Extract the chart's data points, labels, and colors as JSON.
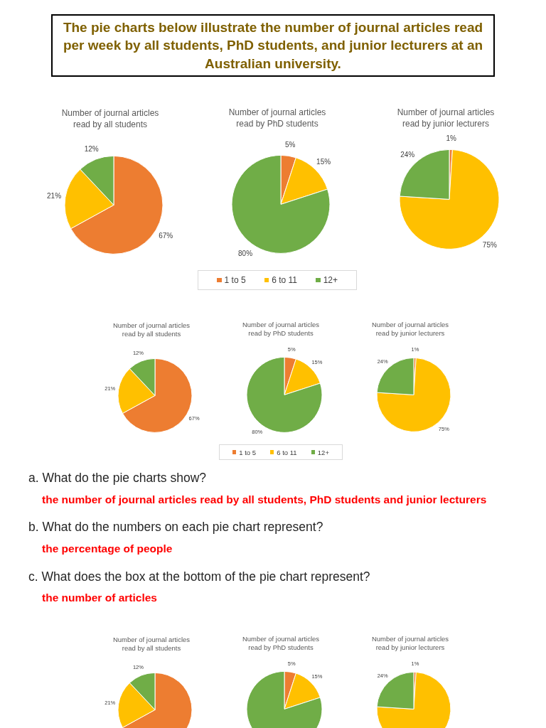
{
  "chart_data": [
    {
      "type": "other",
      "title": "The pie charts below illustrate the number of journal articles read per week by all students, PhD students, and junior lecturers at an Australian university."
    },
    {
      "type": "pie",
      "title": "Number of journal articles read by all students",
      "categories": [
        null,
        null,
        null
      ],
      "values": [
        67,
        21,
        12
      ],
      "colors": [
        "#ed7d31",
        "#ffc000",
        "#70ad47"
      ],
      "value_labels": [
        "67%",
        "21%",
        "12%"
      ]
    },
    {
      "type": "pie",
      "title": "Number of journal articles read by PhD students",
      "categories": [
        "1 to 5",
        "6 to 11",
        "12+"
      ],
      "values": [
        5,
        15,
        80
      ],
      "colors": [
        "#ed7d31",
        "#ffc000",
        "#70ad47"
      ],
      "value_labels": [
        "5%",
        "15%",
        "80%"
      ],
      "legend": "bottom"
    },
    {
      "type": "pie",
      "title": "Number of journal articles read by junior lecturers",
      "categories": [
        null,
        null,
        null
      ],
      "values": [
        1,
        75,
        24
      ],
      "colors": [
        "#ed7d31",
        "#ffc000",
        "#70ad47"
      ],
      "value_labels": [
        "1%",
        "75%",
        "24%"
      ]
    },
    {
      "type": "pie",
      "title": "Number of journal articles read by all students",
      "categories": [
        null,
        null,
        null
      ],
      "values": [
        67,
        21,
        12
      ],
      "colors": [
        "#ed7d31",
        "#ffc000",
        "#70ad47"
      ],
      "value_labels": [
        "67%",
        "21%",
        "12%"
      ]
    },
    {
      "type": "pie",
      "title": "Number of journal articles read by PhD students",
      "categories": [
        "1 to 5",
        "6 to 11",
        "12+"
      ],
      "values": [
        5,
        15,
        80
      ],
      "colors": [
        "#ed7d31",
        "#ffc000",
        "#70ad47"
      ],
      "value_labels": [
        "5%",
        "15%",
        "80%"
      ],
      "legend": "bottom"
    },
    {
      "type": "pie",
      "title": "Number of journal articles read by junior lecturers",
      "categories": [
        null,
        null,
        null
      ],
      "values": [
        1,
        75,
        24
      ],
      "colors": [
        "#ed7d31",
        "#ffc000",
        "#70ad47"
      ],
      "value_labels": [
        "1%",
        "75%",
        "24%"
      ]
    },
    {
      "type": "other",
      "annotations": [
        "a. What do the pie charts show?",
        "the number of journal articles read by all students, PhD students and junior lecturers",
        "b. What do the numbers on each pie chart represent?",
        "the percentage of people",
        "c. What does the box at the bottom of the pie chart represent?",
        "the number of articles"
      ]
    },
    {
      "type": "pie",
      "title": "Number of journal articles read by all students",
      "categories": [
        null,
        null,
        null
      ],
      "values": [
        67,
        21,
        12
      ],
      "colors": [
        "#ed7d31",
        "#ffc000",
        "#70ad47"
      ],
      "value_labels": [
        null,
        "21%",
        "12%"
      ]
    },
    {
      "type": "pie",
      "title": "Number of journal articles read by PhD students",
      "categories": [
        null,
        null,
        null
      ],
      "values": [
        5,
        15,
        80
      ],
      "colors": [
        "#ed7d31",
        "#ffc000",
        "#70ad47"
      ],
      "value_labels": [
        "5%",
        "15%",
        null
      ]
    },
    {
      "type": "pie",
      "title": "Number of journal articles read by junior lecturers",
      "categories": [
        null,
        null,
        null
      ],
      "values": [
        1,
        75,
        24
      ],
      "colors": [
        "#ed7d31",
        "#ffc000",
        "#70ad47"
      ],
      "value_labels": [
        "1%",
        null,
        "24%"
      ]
    }
  ]
}
